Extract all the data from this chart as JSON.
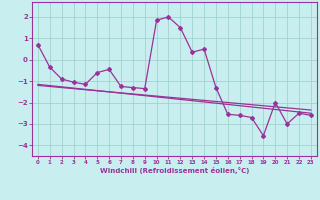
{
  "xlabel": "Windchill (Refroidissement éolien,°C)",
  "xlim": [
    -0.5,
    23.5
  ],
  "ylim": [
    -4.5,
    2.7
  ],
  "yticks": [
    -4,
    -3,
    -2,
    -1,
    0,
    1,
    2
  ],
  "xticks": [
    0,
    1,
    2,
    3,
    4,
    5,
    6,
    7,
    8,
    9,
    10,
    11,
    12,
    13,
    14,
    15,
    16,
    17,
    18,
    19,
    20,
    21,
    22,
    23
  ],
  "bg_color": "#c8eef0",
  "line_color": "#993399",
  "grid_color": "#99cccc",
  "series1_x": [
    0,
    1,
    2,
    3,
    4,
    5,
    6,
    7,
    8,
    9,
    10,
    11,
    12,
    13,
    14,
    15,
    16,
    17,
    18,
    19,
    20,
    21,
    22,
    23
  ],
  "series1_y": [
    0.7,
    -0.35,
    -0.9,
    -1.05,
    -1.15,
    -0.6,
    -0.45,
    -1.25,
    -1.3,
    -1.35,
    1.85,
    2.0,
    1.5,
    0.35,
    0.5,
    -1.3,
    -2.55,
    -2.6,
    -2.7,
    -3.55,
    -2.0,
    -3.0,
    -2.5,
    -2.6
  ],
  "trend_x": [
    0,
    23
  ],
  "trend_y": [
    -1.15,
    -2.5
  ],
  "trend2_x": [
    0,
    23
  ],
  "trend2_y": [
    -1.2,
    -2.35
  ]
}
